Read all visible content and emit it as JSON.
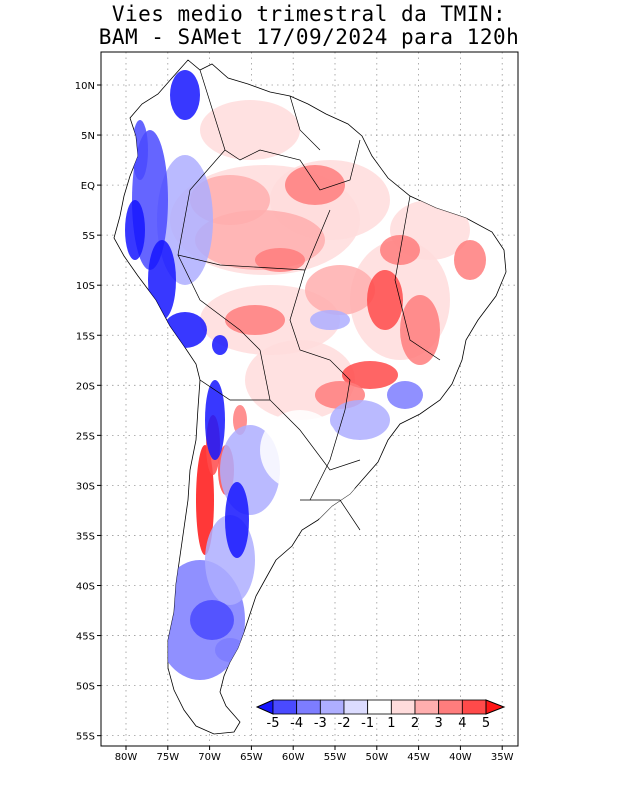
{
  "title": {
    "line1": "Vies medio trimestral da TMIN:",
    "line2": "BAM - SAMet 17/09/2024  para 120h"
  },
  "map": {
    "lat_ticks": [
      "10N",
      "5N",
      "EQ",
      "5S",
      "10S",
      "15S",
      "20S",
      "25S",
      "30S",
      "35S",
      "40S",
      "45S",
      "50S",
      "55S"
    ],
    "lon_ticks": [
      "80W",
      "75W",
      "70W",
      "65W",
      "60W",
      "55W",
      "50W",
      "45W",
      "40W",
      "35W"
    ],
    "grid": true,
    "colorbar": {
      "labels": [
        "-5",
        "-4",
        "-3",
        "-2",
        "-1",
        "1",
        "2",
        "3",
        "4",
        "5"
      ],
      "colors": [
        "#1515ff",
        "#4a4aff",
        "#7d7dff",
        "#aeaeff",
        "#dcdcff",
        "#ffffff",
        "#ffdcdc",
        "#ffaeae",
        "#ff7d7d",
        "#ff4a4a",
        "#ff1515"
      ],
      "placement": "bottom-right"
    }
  }
}
